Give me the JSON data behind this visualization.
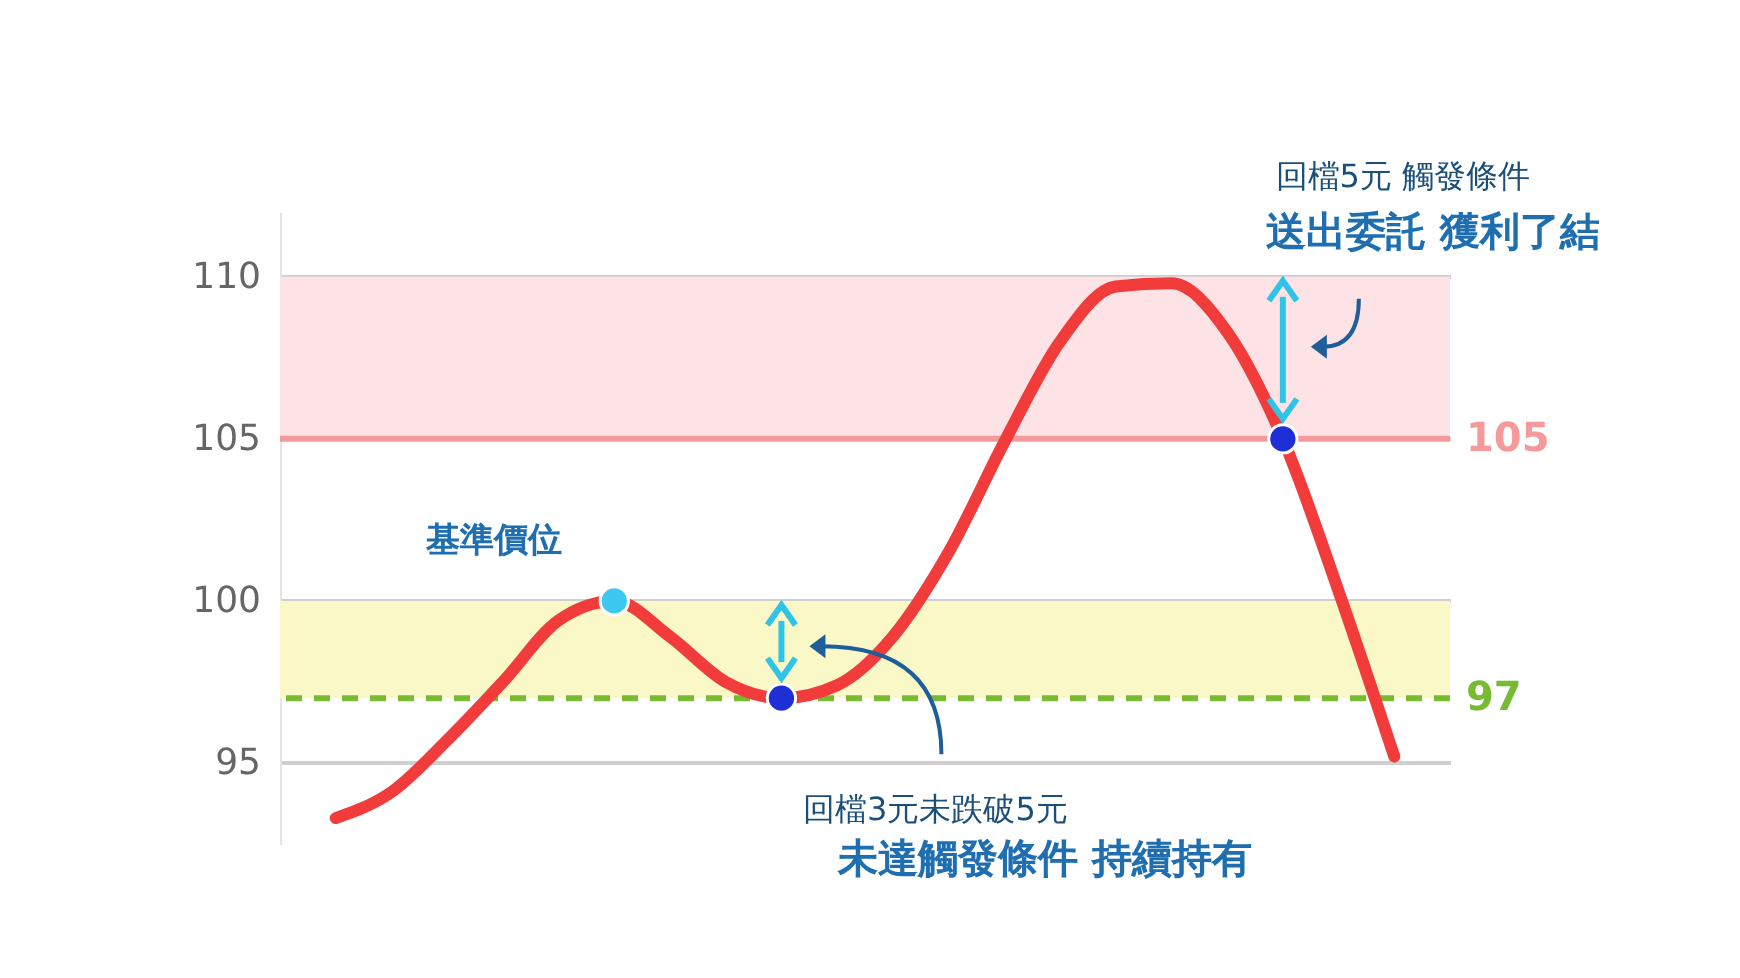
{
  "chart_data": {
    "type": "line",
    "categories": [
      null,
      null,
      null,
      null,
      null,
      null,
      null,
      null,
      null,
      null,
      null,
      null,
      null,
      null,
      null,
      null,
      null,
      null,
      null,
      null
    ],
    "series": [
      {
        "color": "#f23c3c",
        "values": [
          93.3,
          94.1,
          95.7,
          97.5,
          99.4,
          100,
          98.9,
          97.5,
          97,
          97.4,
          98.9,
          101.5,
          104.9,
          108,
          109.7,
          109.8,
          108.3,
          105,
          100.3,
          95.2
        ]
      },
      {
        "type": "scatter",
        "marker": "circle",
        "color": "#3cc8f0",
        "values": [
          null,
          null,
          null,
          null,
          null,
          100,
          null,
          null,
          null,
          null,
          null,
          null,
          null,
          null,
          null,
          null,
          null,
          null,
          null,
          null
        ]
      },
      {
        "type": "scatter",
        "marker": "circle",
        "color": "#1e2fd6",
        "values": [
          null,
          null,
          null,
          null,
          null,
          null,
          null,
          null,
          97,
          null,
          null,
          null,
          null,
          null,
          null,
          null,
          null,
          105,
          null,
          null
        ]
      }
    ],
    "ylim": [
      92.5,
      112
    ],
    "yticks": [
      95,
      100,
      105,
      110
    ],
    "grid": "y",
    "tick_labels": "y",
    "bands": [
      {
        "axis": "y",
        "from": 97,
        "to": 100,
        "color": "#fbf8c8"
      },
      {
        "axis": "y",
        "from": 105,
        "to": 110,
        "color": "#fde3e6"
      }
    ],
    "ref_lines": [
      {
        "axis": "y",
        "value": 105,
        "label": "105",
        "color": "#f59a9a",
        "line_style": "solid"
      },
      {
        "axis": "y",
        "value": 97,
        "label": "97",
        "color": "#77bb33",
        "line_style": "dashed"
      }
    ],
    "annotations": [
      "基準價位",
      "回檔3元未跌破5元",
      "未達觸發條件 持續持有",
      "回檔5元 觸發條件",
      "送出委託 獲利了結"
    ]
  }
}
